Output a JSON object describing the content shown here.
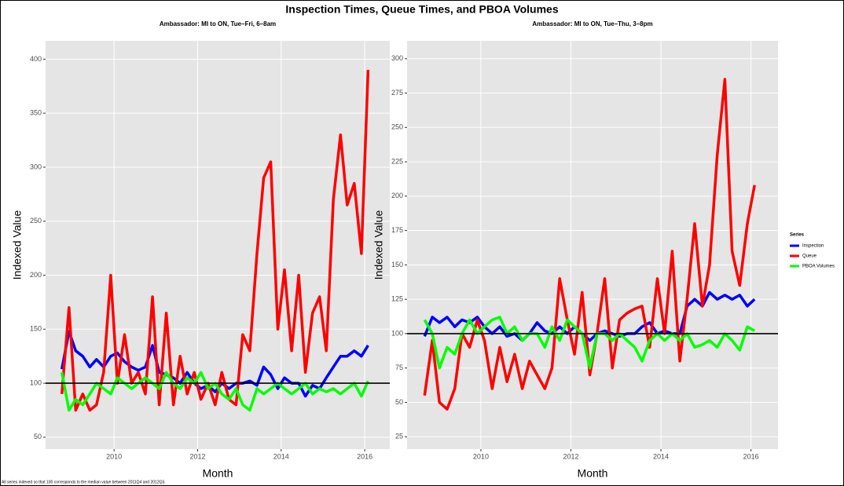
{
  "title": "Inspection Times, Queue Times, and PBOA Volumes",
  "note": "All series indexed so that 100 corresponds to the median value between 2011Q4 and 2012Q3.",
  "legend_title": "Series",
  "chart_data": [
    {
      "type": "line",
      "title": "Ambassador: MI to ON, Tue–Fri, 6–8am",
      "xlabel": "Month",
      "ylabel": "Indexed Value",
      "x": [
        2008.75,
        2008.92,
        2009.08,
        2009.25,
        2009.42,
        2009.58,
        2009.75,
        2009.92,
        2010.08,
        2010.25,
        2010.42,
        2010.58,
        2010.75,
        2010.92,
        2011.08,
        2011.25,
        2011.42,
        2011.58,
        2011.75,
        2011.92,
        2012.08,
        2012.25,
        2012.42,
        2012.58,
        2012.75,
        2012.92,
        2013.08,
        2013.25,
        2013.42,
        2013.58,
        2013.75,
        2013.92,
        2014.08,
        2014.25,
        2014.42,
        2014.58,
        2014.75,
        2014.92,
        2015.08,
        2015.25,
        2015.42,
        2015.58,
        2015.75,
        2015.92,
        2016.08
      ],
      "xlim": [
        2008.36,
        2016.6
      ],
      "xticks": [
        2010,
        2012,
        2014,
        2016
      ],
      "ylim": [
        39,
        417
      ],
      "yticks": [
        50,
        100,
        150,
        200,
        250,
        300,
        350,
        400
      ],
      "hline": 100,
      "grid": true,
      "series": [
        {
          "name": "Inspection",
          "color": "#0000ff",
          "values": [
            113,
            148,
            130,
            125,
            115,
            122,
            115,
            125,
            128,
            120,
            115,
            112,
            115,
            135,
            110,
            108,
            105,
            100,
            110,
            100,
            95,
            98,
            92,
            100,
            95,
            100,
            100,
            102,
            98,
            115,
            108,
            95,
            105,
            100,
            100,
            88,
            98,
            95,
            105,
            115,
            125,
            125,
            130,
            125,
            135
          ]
        },
        {
          "name": "Queue",
          "color": "#ff0000",
          "values": [
            90,
            170,
            75,
            90,
            75,
            80,
            110,
            200,
            100,
            145,
            100,
            110,
            90,
            180,
            80,
            165,
            80,
            125,
            90,
            110,
            85,
            100,
            80,
            110,
            85,
            80,
            145,
            130,
            220,
            290,
            305,
            150,
            205,
            130,
            200,
            110,
            165,
            180,
            130,
            270,
            330,
            265,
            285,
            220,
            390
          ]
        },
        {
          "name": "PBOA Volumes",
          "color": "#00ff00",
          "values": [
            110,
            75,
            85,
            80,
            90,
            100,
            95,
            90,
            105,
            100,
            95,
            100,
            105,
            100,
            95,
            110,
            100,
            95,
            105,
            100,
            110,
            95,
            100,
            90,
            85,
            95,
            80,
            75,
            95,
            90,
            95,
            100,
            95,
            90,
            95,
            100,
            90,
            95,
            92,
            95,
            90,
            95,
            100,
            88,
            102
          ]
        }
      ]
    },
    {
      "type": "line",
      "title": "Ambassador: MI to ON, Tue–Thu, 3–8pm",
      "xlabel": "Month",
      "ylabel": "Indexed Value",
      "x": [
        2008.75,
        2008.92,
        2009.08,
        2009.25,
        2009.42,
        2009.58,
        2009.75,
        2009.92,
        2010.08,
        2010.25,
        2010.42,
        2010.58,
        2010.75,
        2010.92,
        2011.08,
        2011.25,
        2011.42,
        2011.58,
        2011.75,
        2011.92,
        2012.08,
        2012.25,
        2012.42,
        2012.58,
        2012.75,
        2012.92,
        2013.08,
        2013.25,
        2013.42,
        2013.58,
        2013.75,
        2013.92,
        2014.08,
        2014.25,
        2014.42,
        2014.58,
        2014.75,
        2014.92,
        2015.08,
        2015.25,
        2015.42,
        2015.58,
        2015.75,
        2015.92,
        2016.08
      ],
      "xlim": [
        2008.36,
        2016.6
      ],
      "xticks": [
        2010,
        2012,
        2014,
        2016
      ],
      "ylim": [
        16,
        313
      ],
      "yticks": [
        25,
        50,
        75,
        100,
        125,
        150,
        175,
        200,
        225,
        250,
        275,
        300
      ],
      "hline": 100,
      "grid": true,
      "series": [
        {
          "values": [
            98,
            112,
            108,
            112,
            105,
            110,
            108,
            112,
            105,
            100,
            105,
            98,
            100,
            95,
            100,
            108,
            102,
            100,
            105,
            100,
            105,
            100,
            95,
            100,
            102,
            100,
            98,
            100,
            100,
            105,
            108,
            100,
            102,
            100,
            100,
            120,
            125,
            120,
            130,
            125,
            128,
            125,
            128,
            120,
            125
          ]
        },
        {
          "values": [
            55,
            95,
            50,
            45,
            60,
            100,
            90,
            110,
            95,
            60,
            90,
            65,
            85,
            60,
            80,
            70,
            60,
            75,
            140,
            110,
            85,
            130,
            70,
            100,
            140,
            75,
            110,
            115,
            118,
            120,
            90,
            140,
            100,
            160,
            80,
            125,
            180,
            120,
            150,
            230,
            285,
            160,
            135,
            180,
            208
          ]
        },
        {
          "values": [
            110,
            100,
            75,
            90,
            85,
            100,
            110,
            100,
            105,
            110,
            112,
            100,
            105,
            95,
            100,
            100,
            90,
            105,
            95,
            110,
            105,
            100,
            75,
            100,
            100,
            95,
            100,
            95,
            90,
            80,
            95,
            100,
            95,
            100,
            95,
            100,
            90,
            92,
            95,
            90,
            100,
            95,
            88,
            105,
            102
          ]
        }
      ]
    }
  ]
}
